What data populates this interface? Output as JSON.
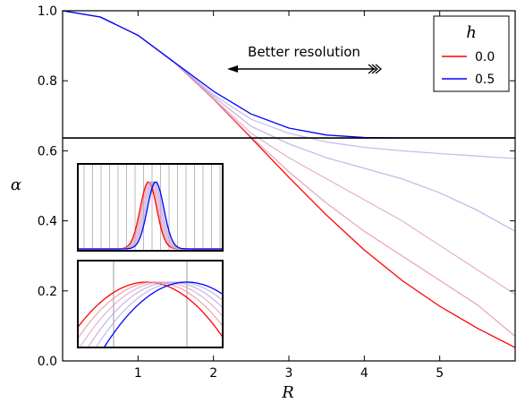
{
  "chart_data": {
    "type": "line",
    "xlabel": "R",
    "ylabel": "α",
    "xlim": [
      0,
      6
    ],
    "ylim": [
      0,
      1
    ],
    "xticks": [
      "1",
      "2",
      "3",
      "4",
      "5"
    ],
    "yticks": [
      "0.0",
      "0.2",
      "0.4",
      "0.6",
      "0.8",
      "1.0"
    ],
    "hline": 0.6366,
    "annotation": "Better resolution",
    "legend": {
      "title": "h",
      "placement": "top-right",
      "entries": [
        {
          "label": "0.0",
          "color": "#ff0000"
        },
        {
          "label": "0.5",
          "color": "#0000ff"
        }
      ]
    },
    "series": [
      {
        "color": "#ff0000",
        "opacity": 1.0,
        "x": [
          0,
          0.5,
          1,
          1.5,
          2,
          2.5,
          3,
          3.5,
          4,
          4.5,
          5,
          5.5,
          6
        ],
        "y": [
          1.0,
          0.982,
          0.93,
          0.849,
          0.748,
          0.637,
          0.524,
          0.416,
          0.317,
          0.23,
          0.156,
          0.093,
          0.038
        ]
      },
      {
        "color": "#e88a9e",
        "opacity": 0.75,
        "x": [
          0,
          0.5,
          1,
          1.5,
          2,
          2.5,
          3,
          3.5,
          4,
          4.5,
          5,
          5.5,
          6
        ],
        "y": [
          1.0,
          0.982,
          0.93,
          0.849,
          0.748,
          0.64,
          0.54,
          0.45,
          0.37,
          0.3,
          0.23,
          0.16,
          0.07
        ]
      },
      {
        "color": "#d9a0be",
        "opacity": 0.75,
        "x": [
          0,
          0.5,
          1,
          1.5,
          2,
          2.5,
          3,
          3.5,
          4,
          4.5,
          5,
          5.5,
          6
        ],
        "y": [
          1.0,
          0.982,
          0.93,
          0.849,
          0.75,
          0.65,
          0.58,
          0.52,
          0.46,
          0.4,
          0.33,
          0.26,
          0.19
        ]
      },
      {
        "color": "#b5a0dd",
        "opacity": 0.75,
        "x": [
          0,
          0.5,
          1,
          1.5,
          2,
          2.5,
          3,
          3.5,
          4,
          4.5,
          5,
          5.5,
          6
        ],
        "y": [
          1.0,
          0.982,
          0.93,
          0.849,
          0.755,
          0.67,
          0.62,
          0.58,
          0.55,
          0.52,
          0.48,
          0.43,
          0.37
        ]
      },
      {
        "color": "#b0aadf",
        "opacity": 0.75,
        "x": [
          0,
          0.5,
          1,
          1.5,
          2,
          2.5,
          3,
          3.5,
          4,
          4.5,
          5,
          5.5,
          6
        ],
        "y": [
          1.0,
          0.982,
          0.93,
          0.849,
          0.76,
          0.69,
          0.65,
          0.625,
          0.61,
          0.6,
          0.592,
          0.585,
          0.578
        ]
      },
      {
        "color": "#0000ff",
        "opacity": 1.0,
        "x": [
          0,
          0.5,
          1,
          1.5,
          2,
          2.5,
          3,
          3.5,
          4,
          4.5,
          5,
          5.5,
          6
        ],
        "y": [
          1.0,
          0.982,
          0.93,
          0.85,
          0.77,
          0.705,
          0.665,
          0.645,
          0.638,
          0.637,
          0.637,
          0.637,
          0.637
        ]
      }
    ]
  }
}
